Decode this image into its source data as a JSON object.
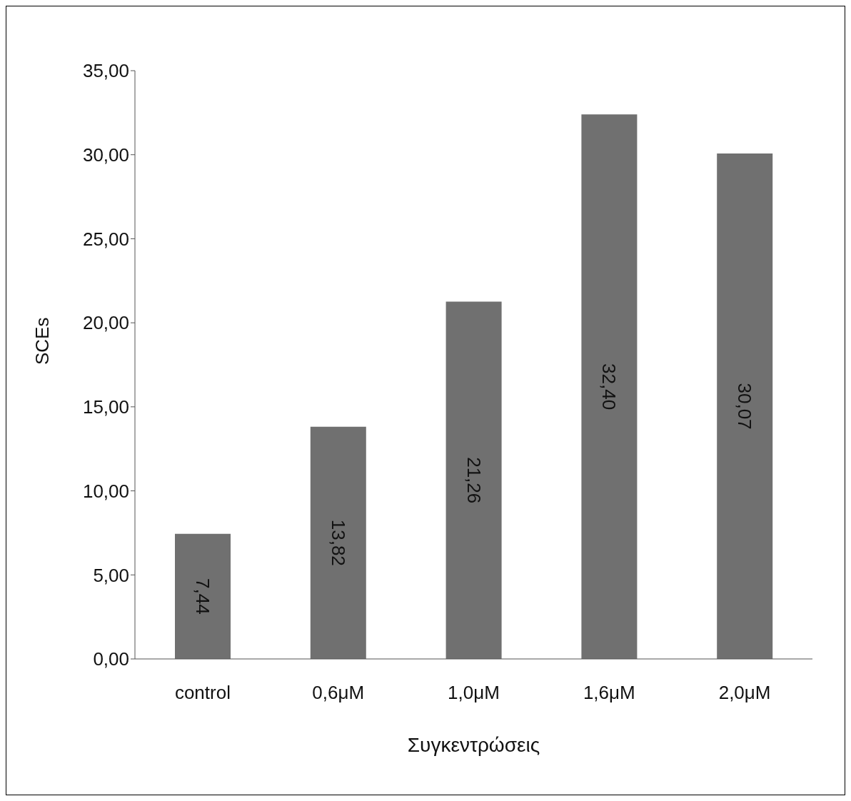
{
  "chart_data": {
    "type": "bar",
    "xlabel": "Συγκεντρώσεις",
    "ylabel": "SCEs",
    "categories": [
      "control",
      "0,6μM",
      "1,0μM",
      "1,6μM",
      "2,0μM"
    ],
    "values": [
      7.44,
      13.82,
      21.26,
      32.4,
      30.07
    ],
    "value_labels": [
      "7,44",
      "13,82",
      "21,26",
      "32,40",
      "30,07"
    ],
    "color": "#707070",
    "ylim": [
      0,
      35
    ],
    "yticks": [
      {
        "value": 0,
        "label": "0,00"
      },
      {
        "value": 5,
        "label": "5,00"
      },
      {
        "value": 10,
        "label": "10,00"
      },
      {
        "value": 15,
        "label": "15,00"
      },
      {
        "value": 20,
        "label": "20,00"
      },
      {
        "value": 25,
        "label": "25,00"
      },
      {
        "value": 30,
        "label": "30,00"
      },
      {
        "value": 35,
        "label": "35,00"
      }
    ],
    "grid": false,
    "legend": false
  }
}
